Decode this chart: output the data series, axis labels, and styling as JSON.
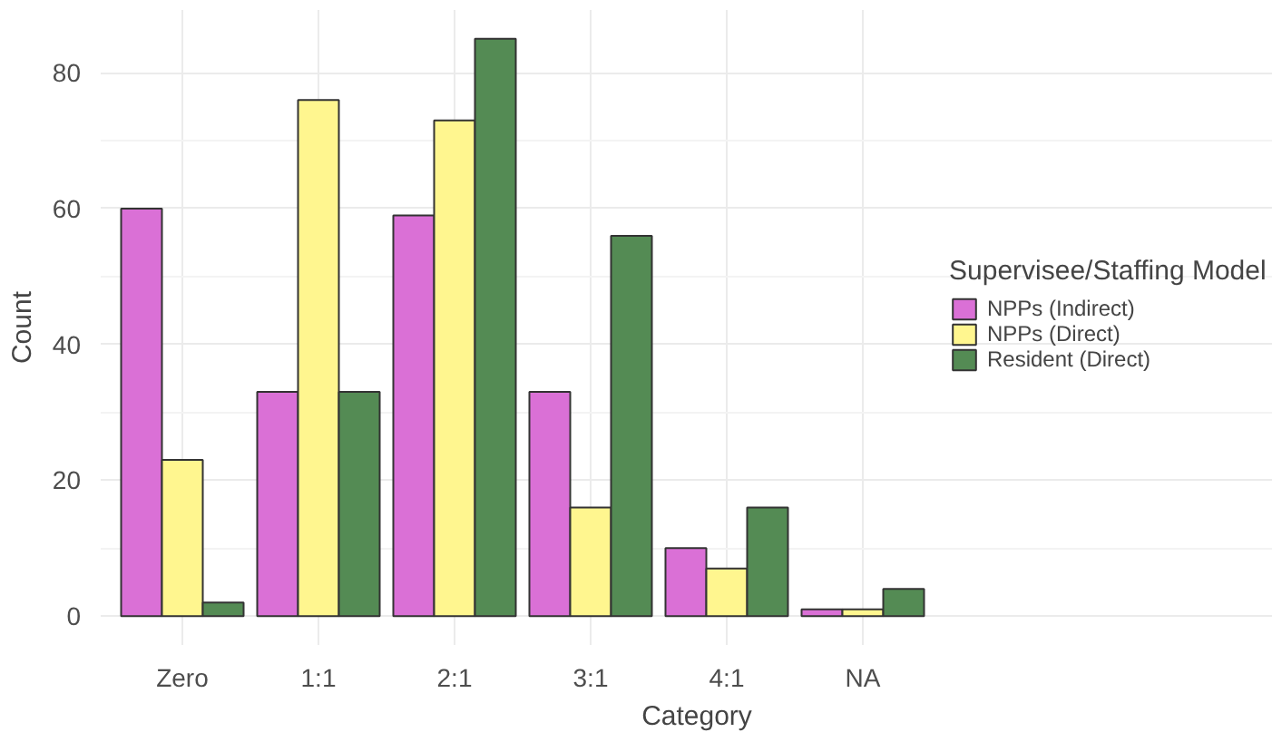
{
  "chart_data": {
    "type": "bar",
    "xlabel": "Category",
    "ylabel": "Count",
    "legend_title": "Supervisee/Staffing Model",
    "categories": [
      "Zero",
      "1:1",
      "2:1",
      "3:1",
      "4:1",
      "NA"
    ],
    "series": [
      {
        "name": "NPPs (Indirect)",
        "color": "#da70d6",
        "values": [
          60,
          33,
          59,
          33,
          10,
          1
        ]
      },
      {
        "name": "NPPs (Direct)",
        "color": "#fff68f",
        "values": [
          23,
          76,
          73,
          16,
          7,
          1
        ]
      },
      {
        "name": "Resident (Direct)",
        "color": "#548b54",
        "values": [
          2,
          33,
          85,
          56,
          16,
          4
        ]
      }
    ],
    "ylim": [
      -4.25,
      89.25
    ],
    "yticks": [
      0,
      20,
      40,
      60,
      80
    ],
    "grid": true,
    "legend": "right"
  }
}
